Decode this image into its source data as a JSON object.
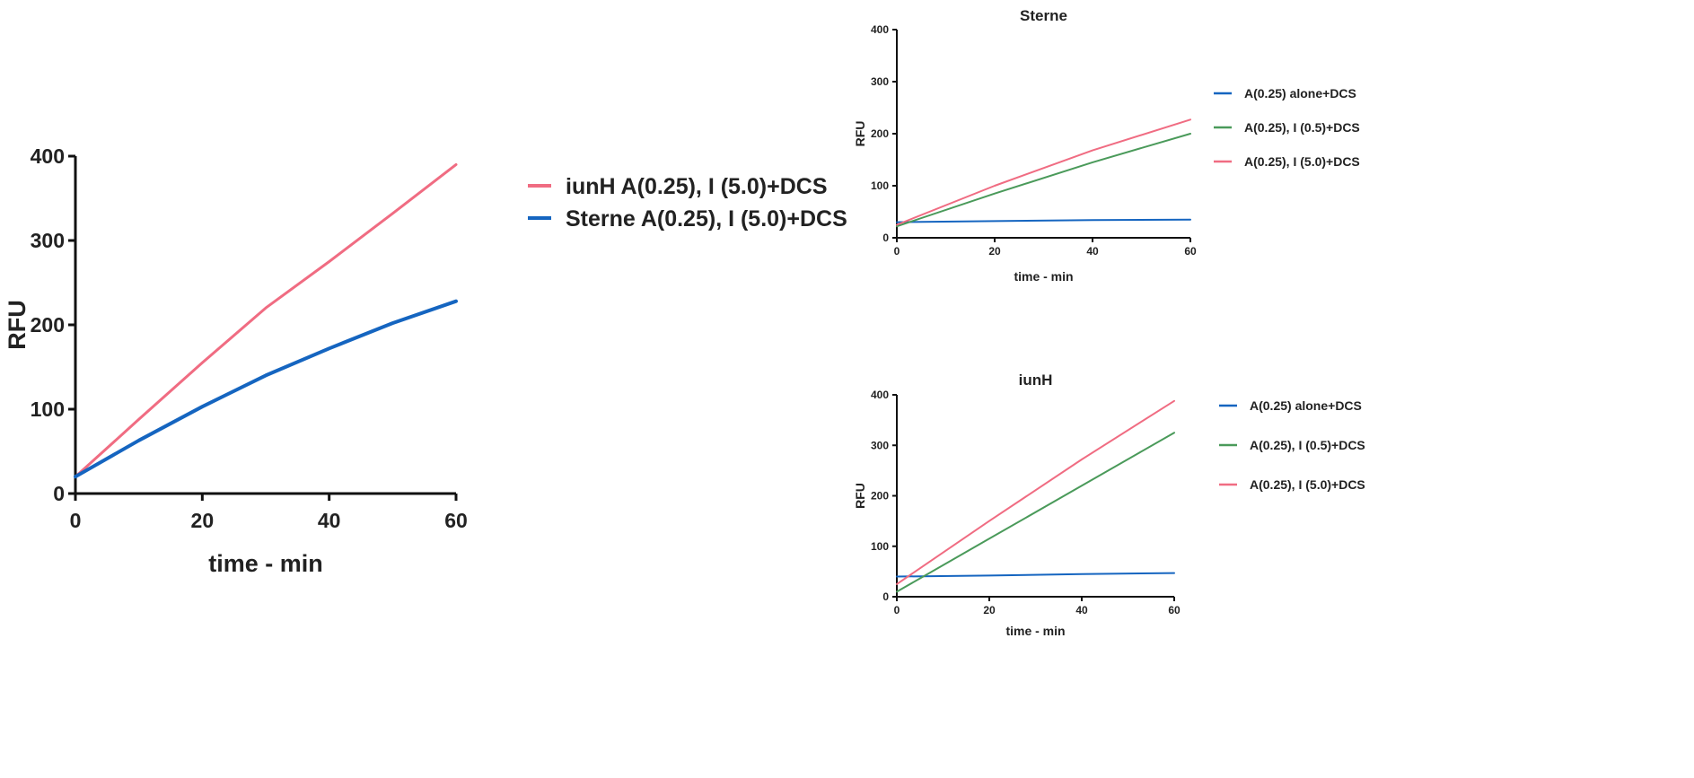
{
  "chart_data": [
    {
      "type": "line",
      "title": "",
      "xlabel": "time - min",
      "ylabel": "RFU",
      "xlim": [
        0,
        60
      ],
      "ylim": [
        0,
        400
      ],
      "xticks": [
        0,
        20,
        40,
        60
      ],
      "yticks": [
        0,
        100,
        200,
        300,
        400
      ],
      "legend_position": "right",
      "series": [
        {
          "name": "iunH A(0.25), I (5.0)+DCS",
          "color": "#f06c82",
          "x": [
            0,
            10,
            20,
            30,
            40,
            50,
            60
          ],
          "y": [
            20,
            88,
            155,
            220,
            275,
            332,
            390
          ]
        },
        {
          "name": "Sterne A(0.25), I (5.0)+DCS",
          "color": "#1565c0",
          "x": [
            0,
            10,
            20,
            30,
            40,
            50,
            60
          ],
          "y": [
            20,
            63,
            103,
            140,
            172,
            202,
            228
          ]
        }
      ]
    },
    {
      "type": "line",
      "title": "Sterne",
      "xlabel": "time - min",
      "ylabel": "RFU",
      "xlim": [
        0,
        60
      ],
      "ylim": [
        0,
        400
      ],
      "xticks": [
        0,
        20,
        40,
        60
      ],
      "yticks": [
        0,
        100,
        200,
        300,
        400
      ],
      "legend_position": "right",
      "series": [
        {
          "name": "A(0.25) alone+DCS",
          "color": "#1565c0",
          "x": [
            0,
            20,
            40,
            60
          ],
          "y": [
            30,
            32,
            34,
            35
          ]
        },
        {
          "name": "A(0.25), I (0.5)+DCS",
          "color": "#4a9a5a",
          "x": [
            0,
            20,
            40,
            60
          ],
          "y": [
            22,
            85,
            145,
            200
          ]
        },
        {
          "name": "A(0.25), I (5.0)+DCS",
          "color": "#f06c82",
          "x": [
            0,
            20,
            40,
            60
          ],
          "y": [
            25,
            100,
            168,
            227
          ]
        }
      ]
    },
    {
      "type": "line",
      "title": "iunH",
      "xlabel": "time - min",
      "ylabel": "RFU",
      "xlim": [
        0,
        60
      ],
      "ylim": [
        0,
        400
      ],
      "xticks": [
        0,
        20,
        40,
        60
      ],
      "yticks": [
        0,
        100,
        200,
        300,
        400
      ],
      "legend_position": "right",
      "series": [
        {
          "name": "A(0.25) alone+DCS",
          "color": "#1565c0",
          "x": [
            0,
            20,
            40,
            60
          ],
          "y": [
            40,
            42,
            45,
            47
          ]
        },
        {
          "name": "A(0.25), I (0.5)+DCS",
          "color": "#4a9a5a",
          "x": [
            0,
            20,
            40,
            60
          ],
          "y": [
            10,
            115,
            220,
            325
          ]
        },
        {
          "name": "A(0.25), I (5.0)+DCS",
          "color": "#f06c82",
          "x": [
            0,
            20,
            40,
            60
          ],
          "y": [
            25,
            150,
            272,
            388
          ]
        }
      ]
    }
  ]
}
